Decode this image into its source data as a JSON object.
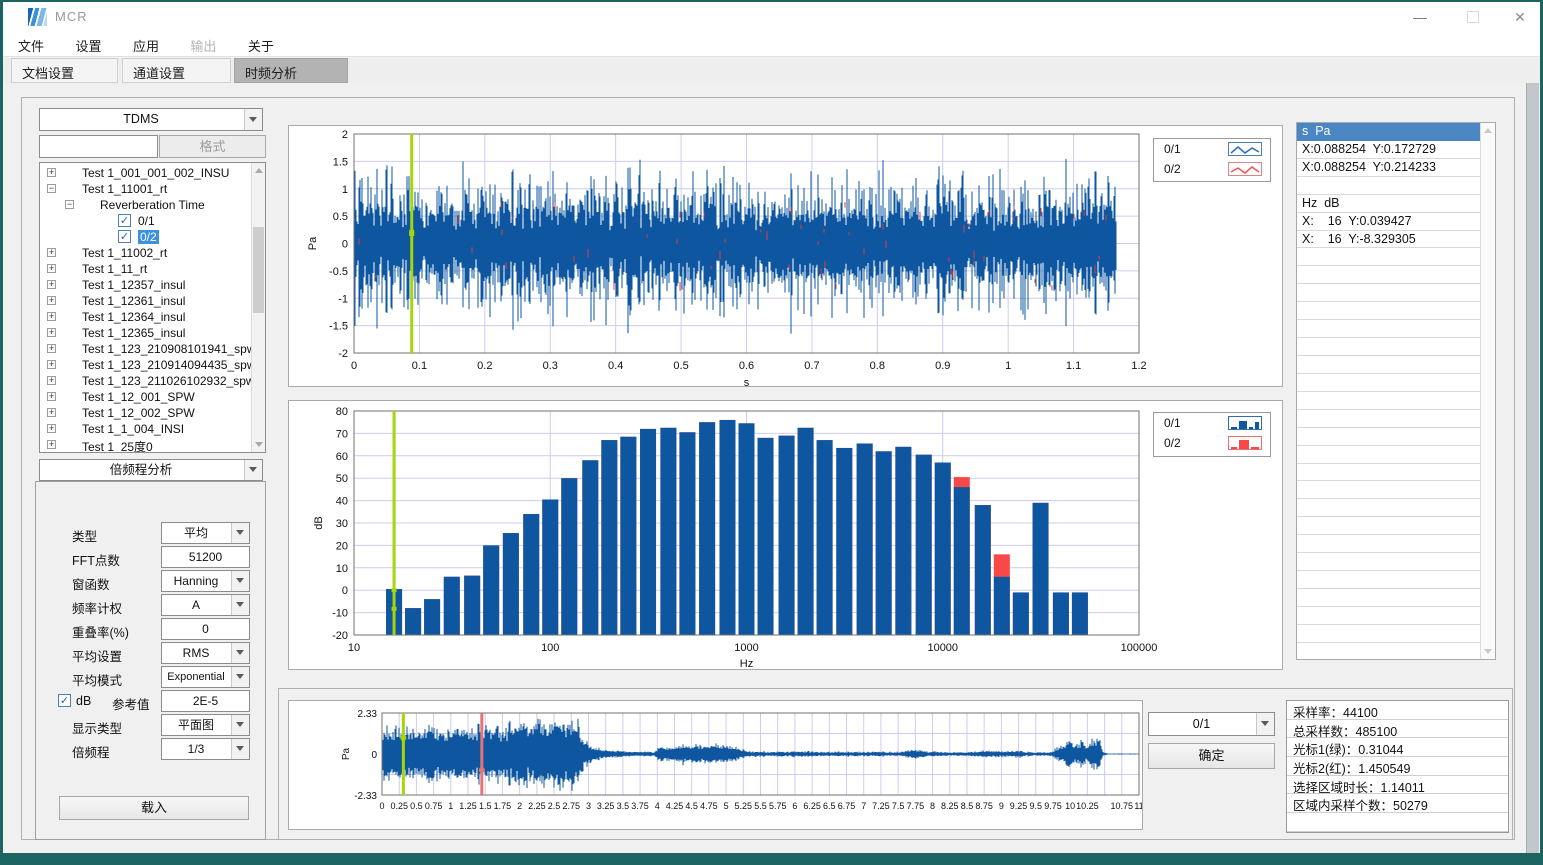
{
  "window": {
    "title": "MCR",
    "controls": {
      "minimize": "—",
      "close": "✕"
    }
  },
  "menu": {
    "items": [
      {
        "label": "文件",
        "enabled": true
      },
      {
        "label": "设置",
        "enabled": true
      },
      {
        "label": "应用",
        "enabled": true
      },
      {
        "label": "输出",
        "enabled": false
      },
      {
        "label": "关于",
        "enabled": true
      }
    ]
  },
  "tabs": [
    {
      "label": "文档设置",
      "active": false
    },
    {
      "label": "通道设置",
      "active": false
    },
    {
      "label": "时频分析",
      "active": true
    }
  ],
  "left_panel": {
    "file_format_combo": {
      "value": "TDMS"
    },
    "filter_input": {
      "value": "",
      "placeholder": ""
    },
    "format_button": {
      "label": "格式",
      "enabled": false
    },
    "tree_items": [
      {
        "label": "Test 1_001_001_002_INSU",
        "level": 0,
        "expander": "+"
      },
      {
        "label": "Test 1_11001_rt",
        "level": 0,
        "expander": "-"
      },
      {
        "label": "Reverberation Time",
        "level": 1,
        "expander": "-"
      },
      {
        "label": "0/1",
        "level": 2,
        "checkbox": true,
        "checked": true
      },
      {
        "label": "0/2",
        "level": 2,
        "checkbox": true,
        "checked": true,
        "selected": true
      },
      {
        "label": "Test 1_11002_rt",
        "level": 0,
        "expander": "+"
      },
      {
        "label": "Test 1_11_rt",
        "level": 0,
        "expander": "+"
      },
      {
        "label": "Test 1_12357_insul",
        "level": 0,
        "expander": "+"
      },
      {
        "label": "Test 1_12361_insul",
        "level": 0,
        "expander": "+"
      },
      {
        "label": "Test 1_12364_insul",
        "level": 0,
        "expander": "+"
      },
      {
        "label": "Test 1_12365_insul",
        "level": 0,
        "expander": "+"
      },
      {
        "label": "Test 1_123_210908101941_spw",
        "level": 0,
        "expander": "+"
      },
      {
        "label": "Test 1_123_210914094435_spw",
        "level": 0,
        "expander": "+"
      },
      {
        "label": "Test 1_123_211026102932_spw",
        "level": 0,
        "expander": "+"
      },
      {
        "label": "Test 1_12_001_SPW",
        "level": 0,
        "expander": "+"
      },
      {
        "label": "Test 1_12_002_SPW",
        "level": 0,
        "expander": "+"
      },
      {
        "label": "Test 1_1_004_INSI",
        "level": 0,
        "expander": "+"
      },
      {
        "label": "Test 1_25度0",
        "level": 0,
        "expander": "+"
      }
    ],
    "analysis_combo": {
      "value": "倍频程分析"
    },
    "form": {
      "fields": [
        {
          "label": "类型",
          "type": "combo",
          "value": "平均"
        },
        {
          "label": "FFT点数",
          "type": "input",
          "value": "51200"
        },
        {
          "label": "窗函数",
          "type": "combo",
          "value": "Hanning"
        },
        {
          "label": "频率计权",
          "type": "combo",
          "value": "A"
        },
        {
          "label": "重叠率(%)",
          "type": "input",
          "value": "0"
        },
        {
          "label": "平均设置",
          "type": "combo",
          "value": "RMS"
        },
        {
          "label": "平均模式",
          "type": "combo",
          "value": "Exponential"
        },
        {
          "label": "dB",
          "type": "checkbox-input",
          "checked": true,
          "ref_label": "参考值",
          "value": "2E-5"
        },
        {
          "label": "显示类型",
          "type": "combo",
          "value": "平面图"
        },
        {
          "label": "倍频程",
          "type": "combo",
          "value": "1/3"
        }
      ],
      "load_button": "载入"
    }
  },
  "legends": {
    "top_chart": [
      {
        "label": "0/1"
      },
      {
        "label": "0/2"
      }
    ],
    "mid_chart": [
      {
        "label": "0/1"
      },
      {
        "label": "0/2"
      }
    ]
  },
  "chart_data": [
    {
      "id": "time_waveform",
      "type": "line",
      "title": "",
      "xlabel": "s",
      "ylabel": "Pa",
      "xlim": [
        0,
        1.2
      ],
      "ylim": [
        -2,
        2
      ],
      "grid": true,
      "legend_position": "outside-right",
      "xticks": [
        "0",
        "0.1",
        "0.2",
        "0.3",
        "0.4",
        "0.5",
        "0.6",
        "0.7",
        "0.8",
        "0.9",
        "1",
        "1.1",
        "1.2"
      ],
      "yticks": [
        "2",
        "1.5",
        "1",
        "0.5",
        "0",
        "-0.5",
        "-1",
        "-1.5",
        "-2"
      ],
      "series": [
        {
          "name": "0/1",
          "color": "#0e57a0"
        },
        {
          "name": "0/2",
          "color": "#e23b3b"
        }
      ],
      "signal": {
        "kind": "broadband-noise",
        "t_end": 1.165,
        "base_amplitude_pa": 0.78,
        "peak_amplitude_pa": 1.7
      },
      "cursor": {
        "x": 0.088254,
        "color": "#a6d50a",
        "y_values": [
          0.172729,
          0.214233
        ]
      }
    },
    {
      "id": "third_octave_spectrum",
      "type": "bar",
      "title": "",
      "xlabel": "Hz",
      "ylabel": "dB",
      "x_scale": "log",
      "xlim": [
        10,
        100000
      ],
      "ylim": [
        -20,
        80
      ],
      "grid": true,
      "legend_position": "outside-right",
      "xticks": [
        "10",
        "100",
        "1000",
        "10000",
        "100000"
      ],
      "yticks": [
        "80",
        "70",
        "60",
        "50",
        "40",
        "30",
        "20",
        "10",
        "0",
        "-10",
        "-20"
      ],
      "categories": [
        16,
        20,
        25,
        31.5,
        40,
        50,
        63,
        80,
        100,
        125,
        160,
        200,
        250,
        315,
        400,
        500,
        630,
        800,
        1000,
        1250,
        1600,
        2000,
        2500,
        3150,
        4000,
        5000,
        6300,
        8000,
        10000,
        12500,
        16000,
        20000,
        25000,
        31500,
        40000,
        50000
      ],
      "series": [
        {
          "name": "0/1",
          "color": "#0e57a0",
          "values": [
            0.5,
            -8,
            -4,
            6,
            6.5,
            20,
            25.5,
            34,
            40.5,
            50,
            58,
            67,
            68.5,
            72,
            72.5,
            70.5,
            75,
            76,
            74.5,
            68,
            69,
            72.5,
            67,
            63.5,
            65.5,
            62,
            64,
            60.5,
            57,
            46,
            38,
            6,
            -1,
            39,
            -1,
            -1
          ]
        },
        {
          "name": "0/2",
          "color": "#f94848",
          "values": [
            0.5,
            -8,
            -4,
            6,
            6.5,
            20,
            25.5,
            34,
            40.5,
            50,
            58,
            67,
            68.5,
            72,
            72.5,
            70.5,
            75,
            76,
            74.5,
            68,
            69,
            72.5,
            67,
            63.5,
            65.5,
            62,
            64,
            60.5,
            57,
            50.5,
            38,
            16,
            -1,
            39,
            -1,
            -1
          ]
        }
      ],
      "cursor": {
        "x": 16,
        "color": "#a6d50a",
        "y_values": [
          0.039427,
          -8.329305
        ]
      }
    },
    {
      "id": "full_record_waveform",
      "type": "line",
      "title": "",
      "xlabel": "",
      "ylabel": "Pa",
      "xlim": [
        0,
        11
      ],
      "ylim": [
        -2.33,
        2.33
      ],
      "grid": true,
      "xticks": [
        "0",
        "0.25",
        "0.5",
        "0.75",
        "1",
        "1.25",
        "1.5",
        "1.75",
        "2",
        "2.25",
        "2.5",
        "2.75",
        "3",
        "3.25",
        "3.5",
        "3.75",
        "4",
        "4.25",
        "4.5",
        "4.75",
        "5",
        "5.25",
        "5.5",
        "5.75",
        "6",
        "6.25",
        "6.5",
        "6.75",
        "7",
        "7.25",
        "7.5",
        "7.75",
        "8",
        "8.25",
        "8.5",
        "8.75",
        "9",
        "9.25",
        "9.5",
        "9.75",
        "10",
        "10.25",
        "10.75",
        "11"
      ],
      "yticks": [
        "2.33",
        "0",
        "-2.33"
      ],
      "series": [
        {
          "name": "0/1",
          "color": "#0e57a0"
        }
      ],
      "envelope_pa": [
        [
          0,
          1.4
        ],
        [
          0.6,
          1.45
        ],
        [
          1.2,
          1.5
        ],
        [
          1.8,
          1.6
        ],
        [
          2.3,
          1.7
        ],
        [
          2.6,
          1.9
        ],
        [
          2.72,
          2.15
        ],
        [
          2.8,
          2.33
        ],
        [
          2.86,
          1.6
        ],
        [
          2.95,
          0.7
        ],
        [
          3.1,
          0.35
        ],
        [
          3.3,
          0.2
        ],
        [
          3.6,
          0.14
        ],
        [
          3.95,
          0.12
        ],
        [
          4.05,
          0.45
        ],
        [
          4.2,
          0.35
        ],
        [
          4.35,
          0.55
        ],
        [
          4.5,
          0.42
        ],
        [
          4.65,
          0.6
        ],
        [
          4.8,
          0.55
        ],
        [
          4.95,
          0.5
        ],
        [
          5.1,
          0.45
        ],
        [
          5.2,
          0.3
        ],
        [
          5.35,
          0.16
        ],
        [
          5.6,
          0.13
        ],
        [
          6.1,
          0.14
        ],
        [
          6.6,
          0.13
        ],
        [
          7.1,
          0.12
        ],
        [
          7.55,
          0.13
        ],
        [
          7.75,
          0.25
        ],
        [
          7.95,
          0.14
        ],
        [
          8.4,
          0.1
        ],
        [
          8.8,
          0.18
        ],
        [
          9.05,
          0.16
        ],
        [
          9.25,
          0.2
        ],
        [
          9.45,
          0.1
        ],
        [
          9.7,
          0.09
        ],
        [
          9.9,
          0.5
        ],
        [
          10.0,
          0.8
        ],
        [
          10.08,
          0.45
        ],
        [
          10.16,
          0.7
        ],
        [
          10.24,
          0.5
        ],
        [
          10.32,
          0.75
        ],
        [
          10.42,
          1.0
        ],
        [
          10.48,
          0.1
        ],
        [
          10.55,
          0.03
        ],
        [
          11,
          0.03
        ]
      ],
      "cursors": [
        {
          "name": "cursor1-green",
          "x": 0.31044,
          "color": "#a6d50a"
        },
        {
          "name": "cursor2-red",
          "x": 1.450549,
          "color": "#e57373"
        }
      ]
    }
  ],
  "readout_panel": {
    "selected_index": 0,
    "rows": [
      "s  Pa",
      "X:0.088254  Y:0.172729",
      "X:0.088254  Y:0.214233",
      "",
      "Hz  dB",
      "X:    16  Y:0.039427",
      "X:    16  Y:-8.329305"
    ]
  },
  "bottom_panel": {
    "channel_combo": {
      "value": "0/1"
    },
    "confirm_button": "确定",
    "info_rows": [
      {
        "label": "采样率：",
        "value": "44100"
      },
      {
        "label": "总采样数：",
        "value": "485100"
      },
      {
        "label": "光标1(绿)：",
        "value": "0.31044"
      },
      {
        "label": "光标2(红)：",
        "value": "1.450549"
      },
      {
        "label": "选择区域时长：",
        "value": "1.14011"
      },
      {
        "label": "区域内采样个数：",
        "value": "50279"
      }
    ]
  },
  "colors": {
    "series_blue": "#0e57a0",
    "series_red": "#f94848",
    "cursor_green": "#a6d50a",
    "cursor_red": "#e57373",
    "grid": "#ccccf2",
    "selection_blue": "#3d8fe0",
    "header_blue": "#4a86c4",
    "frame_teal": "#2a7c7c"
  }
}
